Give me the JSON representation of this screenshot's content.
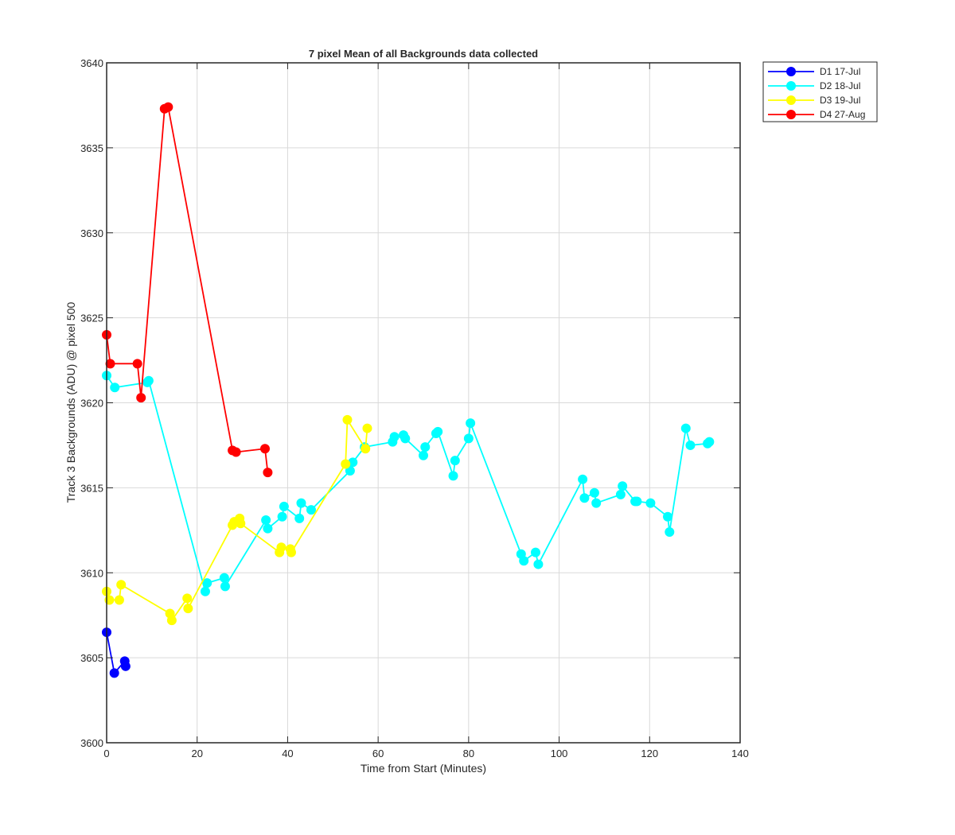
{
  "chart_data": {
    "type": "line",
    "title": "7 pixel Mean of all Backgrounds data collected",
    "xlabel": "Time from Start (Minutes)",
    "ylabel": "Track 3 Backgrounds (ADU) @ pixel 500",
    "xlim": [
      0,
      140
    ],
    "ylim": [
      3600,
      3640
    ],
    "xticks": [
      0,
      20,
      40,
      60,
      80,
      100,
      120,
      140
    ],
    "yticks": [
      3600,
      3605,
      3610,
      3615,
      3620,
      3625,
      3630,
      3635,
      3640
    ],
    "grid": true,
    "legend_position": "outside-top-right",
    "series": [
      {
        "name": "D1 17-Jul",
        "color": "#0000ff",
        "x": [
          0.0,
          1.7,
          4.0,
          4.2
        ],
        "y": [
          3606.5,
          3604.1,
          3604.8,
          3604.5
        ]
      },
      {
        "name": "D2 18-Jul",
        "color": "#00ffff",
        "x": [
          0.0,
          1.8,
          9.0,
          9.3,
          21.8,
          22.2,
          26.0,
          26.2,
          35.2,
          35.6,
          38.8,
          39.2,
          42.6,
          43.0,
          45.2,
          53.8,
          54.4,
          57.0,
          63.2,
          63.6,
          65.6,
          66.0,
          70.0,
          70.4,
          72.8,
          73.2,
          76.6,
          77.0,
          80.0,
          80.4,
          91.6,
          92.2,
          94.8,
          95.4,
          105.2,
          105.6,
          107.8,
          108.2,
          113.6,
          114.0,
          116.8,
          117.2,
          120.2,
          124.0,
          124.4,
          128.0,
          129.0,
          132.8,
          133.2
        ],
        "y": [
          3621.6,
          3620.9,
          3621.2,
          3621.3,
          3608.9,
          3609.4,
          3609.7,
          3609.2,
          3613.1,
          3612.6,
          3613.3,
          3613.9,
          3613.2,
          3614.1,
          3613.7,
          3616.0,
          3616.5,
          3617.4,
          3617.7,
          3618.0,
          3618.1,
          3617.9,
          3616.9,
          3617.4,
          3618.2,
          3618.3,
          3615.7,
          3616.6,
          3617.9,
          3618.8,
          3611.1,
          3610.7,
          3611.2,
          3610.5,
          3615.5,
          3614.4,
          3614.7,
          3614.1,
          3614.6,
          3615.1,
          3614.2,
          3614.2,
          3614.1,
          3613.3,
          3612.4,
          3618.5,
          3617.5,
          3617.6,
          3617.7
        ]
      },
      {
        "name": "D3 19-Jul",
        "color": "#ffff00",
        "x": [
          0.0,
          0.6,
          2.8,
          3.2,
          14.0,
          14.4,
          17.8,
          18.0,
          27.8,
          28.2,
          29.4,
          29.6,
          38.2,
          38.6,
          40.6,
          40.8,
          52.8,
          53.2,
          57.2,
          57.6
        ],
        "y": [
          3608.9,
          3608.4,
          3608.4,
          3609.3,
          3607.6,
          3607.2,
          3608.5,
          3607.9,
          3612.8,
          3613.0,
          3613.2,
          3612.9,
          3611.2,
          3611.5,
          3611.4,
          3611.2,
          3616.4,
          3619.0,
          3617.3,
          3618.5
        ]
      },
      {
        "name": "D4 27-Aug",
        "color": "#ff0000",
        "x": [
          0.0,
          0.8,
          6.8,
          7.6,
          12.8,
          13.6,
          27.8,
          28.6,
          35.0,
          35.6
        ],
        "y": [
          3624.0,
          3622.3,
          3622.3,
          3620.3,
          3637.3,
          3637.4,
          3617.2,
          3617.1,
          3617.3,
          3615.9
        ]
      }
    ]
  }
}
